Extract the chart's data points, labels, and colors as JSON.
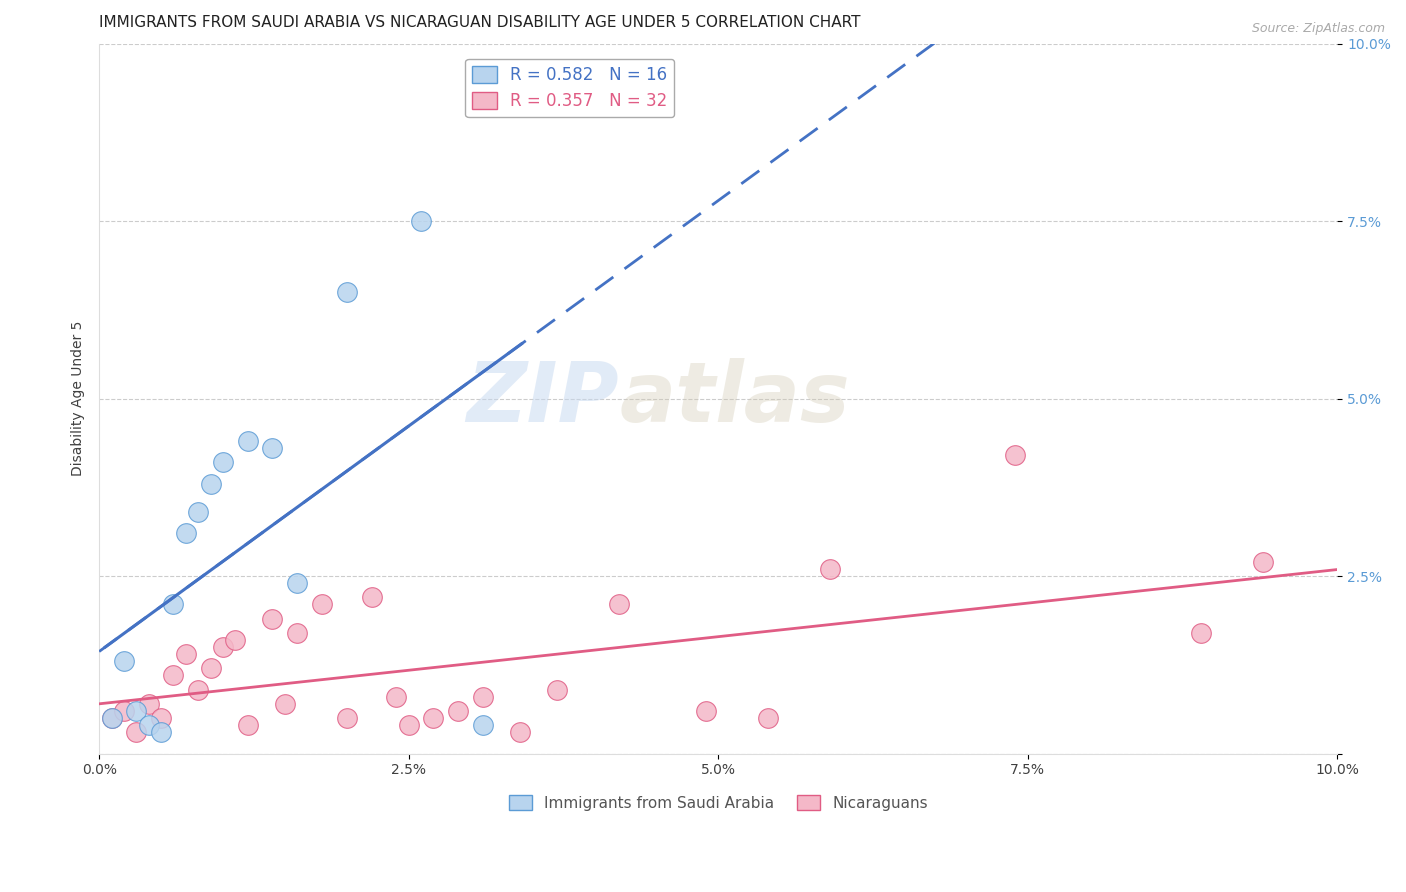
{
  "title": "IMMIGRANTS FROM SAUDI ARABIA VS NICARAGUAN DISABILITY AGE UNDER 5 CORRELATION CHART",
  "source": "Source: ZipAtlas.com",
  "ylabel": "Disability Age Under 5",
  "watermark_zip": "ZIP",
  "watermark_atlas": "atlas",
  "xlim": [
    0.0,
    0.1
  ],
  "ylim": [
    0.0,
    0.1
  ],
  "xticks": [
    0.0,
    0.025,
    0.05,
    0.075,
    0.1
  ],
  "yticks": [
    0.0,
    0.025,
    0.05,
    0.075,
    0.1
  ],
  "xticklabels": [
    "0.0%",
    "2.5%",
    "5.0%",
    "7.5%",
    "10.0%"
  ],
  "yticklabels": [
    "",
    "2.5%",
    "5.0%",
    "7.5%",
    "10.0%"
  ],
  "series1_color": "#b8d4ee",
  "series1_edge": "#5b9bd5",
  "series1_line": "#4472c4",
  "series2_color": "#f4b8c8",
  "series2_edge": "#e05c84",
  "series2_line": "#e05c84",
  "series1_label": "Immigrants from Saudi Arabia",
  "series2_label": "Nicaraguans",
  "R1": 0.582,
  "N1": 16,
  "R2": 0.357,
  "N2": 32,
  "blue_x": [
    0.001,
    0.002,
    0.003,
    0.004,
    0.005,
    0.006,
    0.007,
    0.008,
    0.009,
    0.01,
    0.012,
    0.014,
    0.016,
    0.02,
    0.026,
    0.031
  ],
  "blue_y": [
    0.005,
    0.013,
    0.006,
    0.004,
    0.003,
    0.021,
    0.031,
    0.034,
    0.038,
    0.041,
    0.044,
    0.043,
    0.024,
    0.065,
    0.075,
    0.004
  ],
  "pink_x": [
    0.001,
    0.002,
    0.003,
    0.004,
    0.005,
    0.006,
    0.007,
    0.008,
    0.009,
    0.01,
    0.011,
    0.012,
    0.014,
    0.015,
    0.016,
    0.018,
    0.02,
    0.022,
    0.024,
    0.025,
    0.027,
    0.029,
    0.031,
    0.034,
    0.037,
    0.042,
    0.049,
    0.054,
    0.059,
    0.074,
    0.089,
    0.094
  ],
  "pink_y": [
    0.005,
    0.006,
    0.003,
    0.007,
    0.005,
    0.011,
    0.014,
    0.009,
    0.012,
    0.015,
    0.016,
    0.004,
    0.019,
    0.007,
    0.017,
    0.021,
    0.005,
    0.022,
    0.008,
    0.004,
    0.005,
    0.006,
    0.008,
    0.003,
    0.009,
    0.021,
    0.006,
    0.005,
    0.026,
    0.042,
    0.017,
    0.027
  ],
  "background_color": "#ffffff",
  "grid_color": "#cccccc",
  "title_fontsize": 11,
  "ylabel_fontsize": 10,
  "tick_fontsize": 10,
  "right_tick_color": "#5b9bd5",
  "left_tick_color": "#404040"
}
